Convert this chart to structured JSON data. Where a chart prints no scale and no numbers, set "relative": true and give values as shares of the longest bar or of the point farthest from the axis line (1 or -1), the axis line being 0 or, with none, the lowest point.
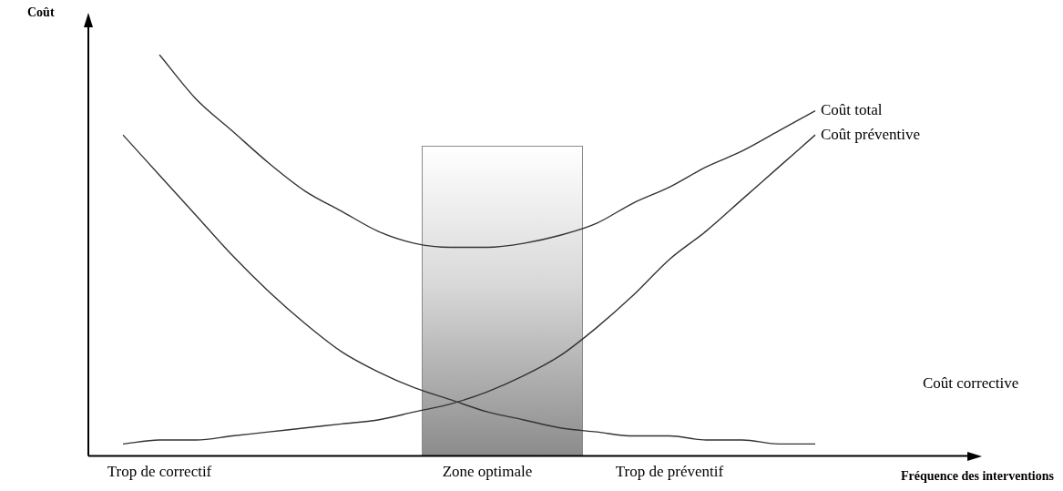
{
  "chart_data": {
    "type": "line",
    "relative": true,
    "ylabel": "Coût",
    "annotations": [
      "Fréquence des interventions"
    ],
    "categories": [
      null,
      "Trop de correctif",
      null,
      null,
      null,
      null,
      null,
      null,
      null,
      null,
      "Zone optimale",
      null,
      null,
      null,
      null,
      "Trop de préventif",
      null,
      null,
      null,
      null
    ],
    "series": [
      {
        "name": "Coût total",
        "color": "#333333",
        "values": [
          null,
          1,
          0.89,
          0.81,
          0.73,
          0.66,
          0.61,
          0.56,
          0.53,
          0.52,
          0.52,
          0.53,
          0.55,
          0.58,
          0.63,
          0.67,
          0.72,
          0.76,
          0.81,
          0.86
        ]
      },
      {
        "name": "Coût préventive",
        "color": "#333333",
        "values": [
          0.03,
          0.04,
          0.04,
          0.05,
          0.06,
          0.07,
          0.08,
          0.09,
          0.11,
          0.13,
          0.16,
          0.2,
          0.25,
          0.32,
          0.4,
          0.49,
          0.56,
          0.64,
          0.72,
          0.8
        ]
      },
      {
        "name": "Coût corrective",
        "color": "#333333",
        "values": [
          0.8,
          0.7,
          0.6,
          0.5,
          0.41,
          0.33,
          0.26,
          0.21,
          0.17,
          0.14,
          0.11,
          0.09,
          0.07,
          0.06,
          0.05,
          0.05,
          0.04,
          0.04,
          0.03,
          0.03
        ]
      }
    ],
    "grid": false,
    "legend": false,
    "marker": "none",
    "line_style": "solid"
  }
}
